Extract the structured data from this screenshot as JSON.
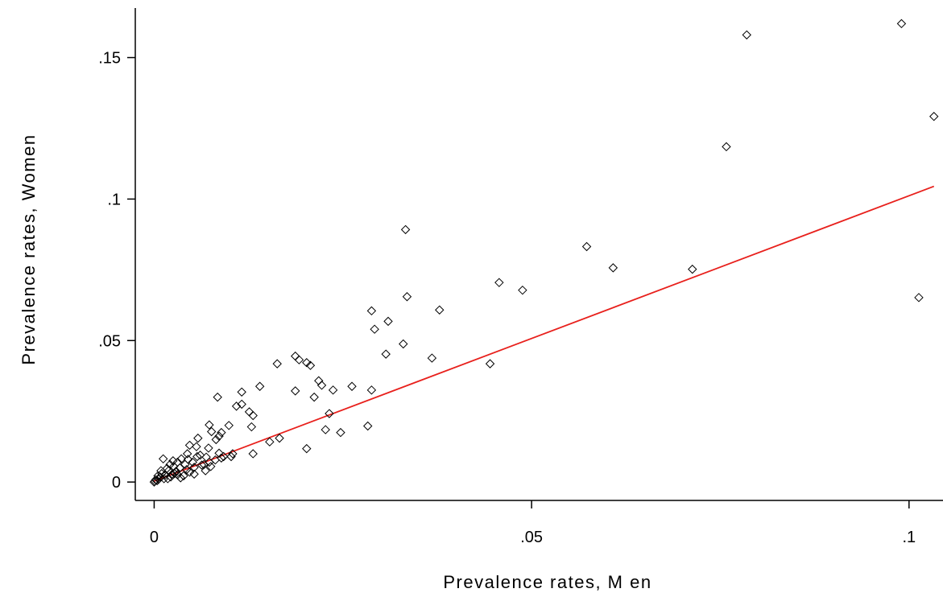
{
  "chart_data": {
    "type": "scatter",
    "title": "",
    "xlabel": "Prevalence rates, M en",
    "ylabel": "Prevalence rates, Women",
    "xlim": [
      -0.0025,
      0.1045
    ],
    "ylim": [
      -0.0065,
      0.1675
    ],
    "grid": false,
    "legend": "none",
    "x_ticks": [
      {
        "value": 0,
        "label": "0"
      },
      {
        "value": 0.05,
        "label": ".05"
      },
      {
        "value": 0.1,
        "label": ".1"
      }
    ],
    "y_ticks": [
      {
        "value": 0,
        "label": "0"
      },
      {
        "value": 0.05,
        "label": ".05"
      },
      {
        "value": 0.1,
        "label": ".1"
      },
      {
        "value": 0.15,
        "label": ".15"
      }
    ],
    "colors": {
      "points": "#000000",
      "fit_line": "#e8201c",
      "axis": "#000000"
    },
    "fit_line": {
      "x": [
        0,
        0.1033
      ],
      "y": [
        0.0003,
        0.1045
      ]
    },
    "points": [
      [
        0.099,
        0.162
      ],
      [
        0.0785,
        0.158
      ],
      [
        0.1033,
        0.1292
      ],
      [
        0.0758,
        0.1185
      ],
      [
        0.1013,
        0.0652
      ],
      [
        0.0713,
        0.0752
      ],
      [
        0.0608,
        0.0757
      ],
      [
        0.0573,
        0.0832
      ],
      [
        0.0488,
        0.0678
      ],
      [
        0.0457,
        0.0705
      ],
      [
        0.0445,
        0.0418
      ],
      [
        0.0378,
        0.0608
      ],
      [
        0.0368,
        0.0438
      ],
      [
        0.0335,
        0.0655
      ],
      [
        0.0333,
        0.0892
      ],
      [
        0.033,
        0.0488
      ],
      [
        0.031,
        0.0568
      ],
      [
        0.0307,
        0.0452
      ],
      [
        0.0292,
        0.054
      ],
      [
        0.0288,
        0.0605
      ],
      [
        0.0288,
        0.0325
      ],
      [
        0.0283,
        0.0198
      ],
      [
        0.0262,
        0.0338
      ],
      [
        0.0247,
        0.0175
      ],
      [
        0.0237,
        0.0325
      ],
      [
        0.0232,
        0.0242
      ],
      [
        0.0227,
        0.0185
      ],
      [
        0.0222,
        0.0342
      ],
      [
        0.0218,
        0.0358
      ],
      [
        0.0212,
        0.03
      ],
      [
        0.0207,
        0.0412
      ],
      [
        0.0202,
        0.0422
      ],
      [
        0.0202,
        0.0118
      ],
      [
        0.0192,
        0.0432
      ],
      [
        0.0187,
        0.0445
      ],
      [
        0.0187,
        0.0322
      ],
      [
        0.0163,
        0.0418
      ],
      [
        0.0166,
        0.0155
      ],
      [
        0.0153,
        0.0142
      ],
      [
        0.014,
        0.0338
      ],
      [
        0.0131,
        0.0235
      ],
      [
        0.0129,
        0.0195
      ],
      [
        0.0131,
        0.01
      ],
      [
        0.0126,
        0.0248
      ],
      [
        0.0116,
        0.0318
      ],
      [
        0.0116,
        0.0275
      ],
      [
        0.0109,
        0.0268
      ],
      [
        0.0104,
        0.01
      ],
      [
        0.0102,
        0.009
      ],
      [
        0.0099,
        0.02
      ],
      [
        0.0089,
        0.0085
      ],
      [
        0.0086,
        0.0102
      ],
      [
        0.0089,
        0.0175
      ],
      [
        0.0084,
        0.03
      ],
      [
        0.0086,
        0.0162
      ],
      [
        0.0082,
        0.015
      ],
      [
        0.0076,
        0.0178
      ],
      [
        0.0073,
        0.0202
      ],
      [
        0.0072,
        0.012
      ],
      [
        0.0069,
        0.0088
      ],
      [
        0.0066,
        0.0062
      ],
      [
        0.0061,
        0.0095
      ],
      [
        0.0058,
        0.0155
      ],
      [
        0.0056,
        0.0125
      ],
      [
        0.0051,
        0.007
      ],
      [
        0.0047,
        0.013
      ],
      [
        0.0044,
        0.01
      ],
      [
        0.0041,
        0.0062
      ],
      [
        0.0039,
        0.0022
      ],
      [
        0.0036,
        0.0082
      ],
      [
        0.0034,
        0.005
      ],
      [
        0.0031,
        0.007
      ],
      [
        0.0029,
        0.0038
      ],
      [
        0.0026,
        0.0055
      ],
      [
        0.0024,
        0.0028
      ],
      [
        0.0021,
        0.0062
      ],
      [
        0.0019,
        0.004
      ],
      [
        0.0017,
        0.0048
      ],
      [
        0.0015,
        0.0025
      ],
      [
        0.0012,
        0.0082
      ],
      [
        0.001,
        0.003
      ],
      [
        0.0008,
        0.0018
      ],
      [
        0.0006,
        0.001
      ],
      [
        0.0004,
        0.0005
      ],
      [
        0.0002,
        0.0008
      ],
      [
        0.0001,
        0.0003
      ],
      [
        0.0,
        0.0
      ],
      [
        0.0005,
        0.0022
      ],
      [
        0.0013,
        0.0012
      ],
      [
        0.0022,
        0.0018
      ],
      [
        0.0031,
        0.0026
      ],
      [
        0.0043,
        0.0044
      ],
      [
        0.0053,
        0.0052
      ],
      [
        0.0063,
        0.006
      ],
      [
        0.0073,
        0.007
      ],
      [
        0.0081,
        0.0078
      ],
      [
        0.0092,
        0.009
      ],
      [
        0.0053,
        0.0028
      ],
      [
        0.0047,
        0.0035
      ],
      [
        0.0035,
        0.0015
      ],
      [
        0.0027,
        0.003
      ],
      [
        0.0018,
        0.0012
      ],
      [
        0.0009,
        0.004
      ],
      [
        0.0045,
        0.008
      ],
      [
        0.0068,
        0.004
      ],
      [
        0.0075,
        0.0055
      ],
      [
        0.0025,
        0.0075
      ],
      [
        0.0057,
        0.009
      ]
    ]
  }
}
